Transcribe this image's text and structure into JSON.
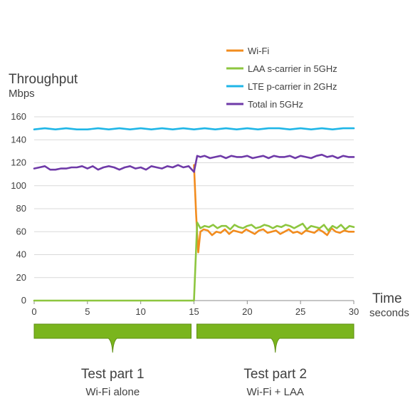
{
  "chart_data": {
    "type": "line",
    "title": "",
    "ylabel": "Throughput",
    "yunit": "Mbps",
    "xlabel": "Time",
    "xunit": "seconds",
    "ylim": [
      0,
      160
    ],
    "xlim": [
      0,
      30
    ],
    "yticks": [
      "0",
      "20",
      "40",
      "60",
      "80",
      "100",
      "120",
      "140",
      "160"
    ],
    "xticks": [
      "0",
      "5",
      "10",
      "15",
      "20",
      "25",
      "30"
    ],
    "grid": true,
    "legend_position": "top-right",
    "series": [
      {
        "name": "Wi-Fi",
        "color": "#F28C1E",
        "x": [
          15.0,
          15.2,
          15.4,
          15.6,
          15.9,
          16.3,
          16.7,
          17.1,
          17.5,
          17.9,
          18.3,
          18.7,
          19.1,
          19.5,
          19.9,
          20.3,
          20.7,
          21.1,
          21.5,
          21.9,
          22.3,
          22.7,
          23.1,
          23.5,
          23.9,
          24.3,
          24.7,
          25.1,
          25.5,
          25.9,
          26.3,
          26.7,
          27.1,
          27.5,
          27.9,
          28.3,
          28.7,
          29.1,
          29.5,
          30.0
        ],
        "y": [
          118,
          75,
          42,
          60,
          62,
          61,
          57,
          60,
          59,
          62,
          58,
          61,
          60,
          59,
          62,
          60,
          58,
          61,
          62,
          59,
          60,
          61,
          58,
          60,
          62,
          59,
          60,
          58,
          61,
          60,
          59,
          62,
          60,
          57,
          63,
          60,
          59,
          61,
          60,
          60
        ]
      },
      {
        "name": "LAA s-carrier in 5GHz",
        "color": "#8DC63F",
        "x": [
          0,
          14.9,
          15.0,
          15.3,
          15.6,
          16.0,
          16.4,
          16.8,
          17.2,
          17.6,
          18.0,
          18.4,
          18.8,
          19.2,
          19.6,
          20.0,
          20.4,
          20.8,
          21.2,
          21.6,
          22.0,
          22.4,
          22.8,
          23.2,
          23.6,
          24.0,
          24.4,
          24.8,
          25.2,
          25.6,
          26.0,
          26.4,
          26.8,
          27.2,
          27.6,
          28.0,
          28.4,
          28.8,
          29.2,
          29.6,
          30.0
        ],
        "y": [
          0,
          0,
          0,
          68,
          63,
          65,
          64,
          66,
          63,
          65,
          65,
          62,
          66,
          64,
          63,
          65,
          66,
          63,
          64,
          66,
          65,
          63,
          65,
          64,
          66,
          65,
          63,
          65,
          67,
          62,
          65,
          64,
          63,
          66,
          61,
          65,
          63,
          66,
          62,
          65,
          64
        ]
      },
      {
        "name": "LTE p-carrier in 2GHz",
        "color": "#1FB6E7",
        "x": [
          0,
          1,
          2,
          3,
          4,
          5,
          6,
          7,
          8,
          9,
          10,
          11,
          12,
          13,
          14,
          15,
          16,
          17,
          18,
          19,
          20,
          21,
          22,
          23,
          24,
          25,
          26,
          27,
          28,
          29,
          30
        ],
        "y": [
          149,
          150,
          149,
          150,
          149,
          149,
          150,
          149,
          150,
          149,
          150,
          149,
          150,
          149,
          150,
          149,
          150,
          149,
          150,
          149,
          150,
          149,
          150,
          150,
          149,
          150,
          149,
          150,
          149,
          150,
          150
        ]
      },
      {
        "name": "Total in 5GHz",
        "color": "#6F3AA8",
        "x": [
          0,
          0.5,
          1.0,
          1.5,
          2.0,
          2.5,
          3.0,
          3.5,
          4.0,
          4.5,
          5.0,
          5.5,
          6.0,
          6.5,
          7.0,
          7.5,
          8.0,
          8.5,
          9.0,
          9.5,
          10.0,
          10.5,
          11.0,
          11.5,
          12.0,
          12.5,
          13.0,
          13.5,
          14.0,
          14.5,
          15.0,
          15.3,
          15.6,
          16.0,
          16.5,
          17.0,
          17.5,
          18.0,
          18.5,
          19.0,
          19.5,
          20.0,
          20.5,
          21.0,
          21.5,
          22.0,
          22.5,
          23.0,
          23.5,
          24.0,
          24.5,
          25.0,
          25.5,
          26.0,
          26.5,
          27.0,
          27.5,
          28.0,
          28.5,
          29.0,
          29.5,
          30.0
        ],
        "y": [
          115,
          116,
          117,
          114,
          114,
          115,
          115,
          116,
          116,
          117,
          115,
          117,
          114,
          116,
          117,
          116,
          114,
          116,
          117,
          115,
          116,
          114,
          117,
          116,
          115,
          117,
          116,
          118,
          116,
          117,
          112,
          126,
          125,
          126,
          124,
          125,
          126,
          124,
          126,
          125,
          125,
          126,
          124,
          125,
          126,
          124,
          126,
          125,
          125,
          126,
          124,
          126,
          125,
          124,
          126,
          127,
          125,
          126,
          124,
          126,
          125,
          125
        ]
      }
    ]
  },
  "segments": [
    {
      "title": "Test part 1",
      "subtitle": "Wi-Fi alone",
      "x_from": 0,
      "x_to": 15
    },
    {
      "title": "Test part 2",
      "subtitle": "Wi-Fi + LAA",
      "x_from": 15,
      "x_to": 30
    }
  ],
  "segment_color": "#7AB51D"
}
